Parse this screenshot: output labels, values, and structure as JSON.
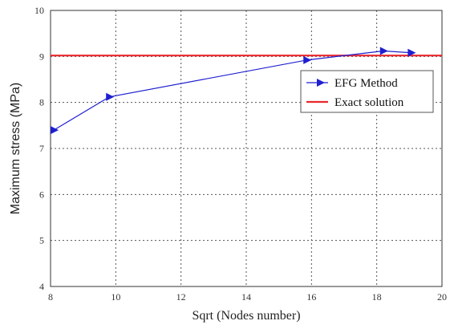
{
  "chart_data": {
    "type": "line",
    "title": "",
    "xlabel": "Sqrt (Nodes number)",
    "ylabel": "Maximum stress (MPa)",
    "xlim": [
      8,
      20
    ],
    "ylim": [
      4,
      10
    ],
    "xticks": [
      "8",
      "10",
      "12",
      "14",
      "16",
      "18",
      "20"
    ],
    "yticks": [
      "4",
      "5",
      "6",
      "7",
      "8",
      "9",
      "10"
    ],
    "grid": true,
    "legend_position": "right",
    "series": [
      {
        "name": "EFG Method",
        "color": "#1f1fd0",
        "marker": "triangle-right",
        "x": [
          8.1,
          9.8,
          15.85,
          18.2,
          19.05
        ],
        "y": [
          7.4,
          8.12,
          8.92,
          9.12,
          9.08
        ]
      },
      {
        "name": "Exact solution",
        "color": "#e8282d",
        "marker": "none",
        "x": [
          8,
          20
        ],
        "y": [
          9.02,
          9.02
        ]
      }
    ]
  }
}
